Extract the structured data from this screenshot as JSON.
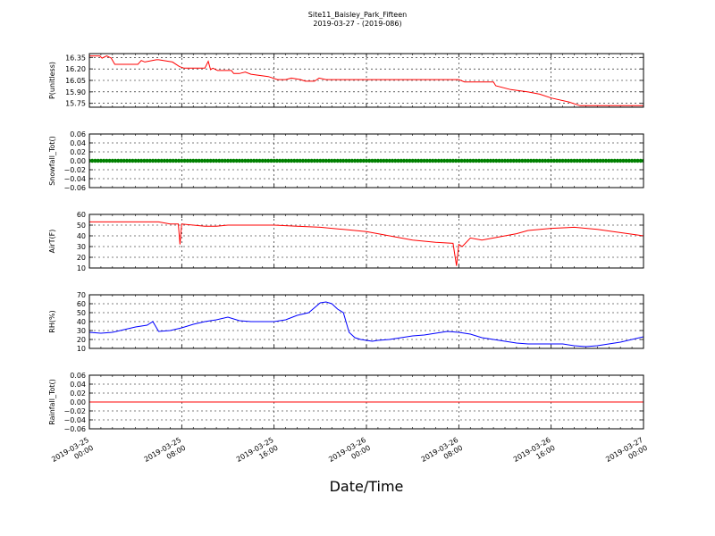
{
  "title": "Site11_Baisley_Park_Fifteen",
  "subtitle": "2019-03-27 - (2019-086)",
  "xlabel": "Date/Time",
  "x_ticks": [
    {
      "x": 0,
      "line1": "2019-03-25",
      "line2": "00:00"
    },
    {
      "x": 8,
      "line1": "2019-03-25",
      "line2": "08:00"
    },
    {
      "x": 16,
      "line1": "2019-03-25",
      "line2": "16:00"
    },
    {
      "x": 24,
      "line1": "2019-03-26",
      "line2": "00:00"
    },
    {
      "x": 32,
      "line1": "2019-03-26",
      "line2": "08:00"
    },
    {
      "x": 40,
      "line1": "2019-03-26",
      "line2": "16:00"
    },
    {
      "x": 48,
      "line1": "2019-03-27",
      "line2": "00:00"
    }
  ],
  "chart_data": [
    {
      "type": "line",
      "ylabel": "P(unitless)",
      "color": "#ff0000",
      "ylim": [
        15.7,
        16.4
      ],
      "yticks": [
        "16.35",
        "16.20",
        "16.05",
        "15.90",
        "15.75"
      ],
      "ytick_values": [
        16.35,
        16.2,
        16.05,
        15.9,
        15.75
      ],
      "x_unit": "hours since 2019-03-25 00:00",
      "x": [
        0,
        0.9,
        1.1,
        1.5,
        1.9,
        2.2,
        4.2,
        4.5,
        4.8,
        5.8,
        6.0,
        7.2,
        7.8,
        8.2,
        10.0,
        10.3,
        10.5,
        10.7,
        11.1,
        12.3,
        12.5,
        13.0,
        13.5,
        14.0,
        15.5,
        16.3,
        17.0,
        17.5,
        18.3,
        18.7,
        19.5,
        19.9,
        20.5,
        22.0,
        24.0,
        28.0,
        32.0,
        32.5,
        35.0,
        35.2,
        36.5,
        38.0,
        39.0,
        40.0,
        41.5,
        42.5,
        43.0,
        44.0,
        48.0
      ],
      "y": [
        16.37,
        16.37,
        16.34,
        16.37,
        16.34,
        16.26,
        16.26,
        16.31,
        16.29,
        16.32,
        16.32,
        16.29,
        16.23,
        16.21,
        16.21,
        16.3,
        16.19,
        16.21,
        16.18,
        16.18,
        16.14,
        16.14,
        16.16,
        16.13,
        16.1,
        16.06,
        16.06,
        16.08,
        16.06,
        16.04,
        16.04,
        16.08,
        16.06,
        16.06,
        16.06,
        16.06,
        16.06,
        16.03,
        16.03,
        15.98,
        15.93,
        15.9,
        15.87,
        15.82,
        15.77,
        15.72,
        15.72,
        15.72,
        15.72
      ]
    },
    {
      "type": "scatter",
      "ylabel": "Snowfall_Tot()",
      "color": "#008000",
      "ylim": [
        -0.06,
        0.06
      ],
      "yticks": [
        "0.06",
        "0.04",
        "0.02",
        "0.00",
        "−0.02",
        "−0.04",
        "−0.06"
      ],
      "ytick_values": [
        0.06,
        0.04,
        0.02,
        0.0,
        -0.02,
        -0.04,
        -0.06
      ],
      "x_unit": "hours since 2019-03-25 00:00",
      "x_range": [
        0,
        48
      ],
      "y_const": 0.0
    },
    {
      "type": "line",
      "ylabel": "AirT(F)",
      "color": "#ff0000",
      "ylim": [
        10,
        60
      ],
      "yticks": [
        "60",
        "50",
        "40",
        "30",
        "20",
        "10"
      ],
      "ytick_values": [
        60,
        50,
        40,
        30,
        20,
        10
      ],
      "x_unit": "hours since 2019-03-25 00:00",
      "x": [
        0,
        2,
        4,
        6,
        7,
        7.7,
        7.85,
        8.0,
        9.0,
        10.0,
        11.0,
        12.0,
        13.0,
        14.0,
        16.0,
        18.0,
        20.0,
        22.0,
        24.0,
        26.0,
        28.0,
        30.0,
        31.5,
        31.8,
        32.0,
        32.3,
        33.0,
        34.0,
        35.0,
        36.0,
        37.0,
        38.0,
        40.0,
        42.0,
        44.0,
        46.0,
        48.0
      ],
      "y": [
        53,
        53,
        53,
        53,
        51,
        51,
        32,
        51,
        50,
        49,
        49,
        50,
        50,
        50,
        50,
        49,
        48,
        46,
        44,
        40,
        36,
        34,
        33,
        12,
        32,
        30,
        38,
        36,
        38,
        40,
        42,
        45,
        47,
        48,
        46,
        43,
        40
      ]
    },
    {
      "type": "line",
      "ylabel": "RH(%)",
      "color": "#0000ff",
      "ylim": [
        10,
        70
      ],
      "yticks": [
        "70",
        "60",
        "50",
        "40",
        "30",
        "20",
        "10"
      ],
      "ytick_values": [
        70,
        60,
        50,
        40,
        30,
        20,
        10
      ],
      "x_unit": "hours since 2019-03-25 00:00",
      "x": [
        0,
        1,
        2,
        3,
        4,
        5,
        5.5,
        6.0,
        7.0,
        8.0,
        9.0,
        10.0,
        11.0,
        12.0,
        13.0,
        14.0,
        15.0,
        16.0,
        17.0,
        18.0,
        19.0,
        20.0,
        20.5,
        21.0,
        21.5,
        22.0,
        22.5,
        23.0,
        23.5,
        24.0,
        24.5,
        25.0,
        26.0,
        27.0,
        28.0,
        29.0,
        30.0,
        31.0,
        32.0,
        33.0,
        34.0,
        35.0,
        36.0,
        37.0,
        38.0,
        39.0,
        40.0,
        41.0,
        42.0,
        43.0,
        44.0,
        46.0,
        48.0
      ],
      "y": [
        28,
        27,
        28,
        31,
        34,
        36,
        40,
        29,
        30,
        33,
        37,
        40,
        42,
        45,
        41,
        40,
        40,
        40,
        42,
        47,
        50,
        61,
        62,
        60,
        54,
        50,
        28,
        22,
        20,
        19,
        18,
        19,
        20,
        22,
        24,
        25,
        27,
        29,
        28,
        26,
        22,
        20,
        18,
        16,
        15,
        15,
        15,
        15,
        13,
        12,
        13,
        17,
        23
      ]
    },
    {
      "type": "line",
      "ylabel": "Rainfall_Tot()",
      "color": "#ff0000",
      "ylim": [
        -0.06,
        0.06
      ],
      "yticks": [
        "0.06",
        "0.04",
        "0.02",
        "0.00",
        "−0.02",
        "−0.04",
        "−0.06"
      ],
      "ytick_values": [
        0.06,
        0.04,
        0.02,
        0.0,
        -0.02,
        -0.04,
        -0.06
      ],
      "x_unit": "hours since 2019-03-25 00:00",
      "x": [
        0,
        48
      ],
      "y": [
        0.0,
        0.0
      ]
    }
  ]
}
